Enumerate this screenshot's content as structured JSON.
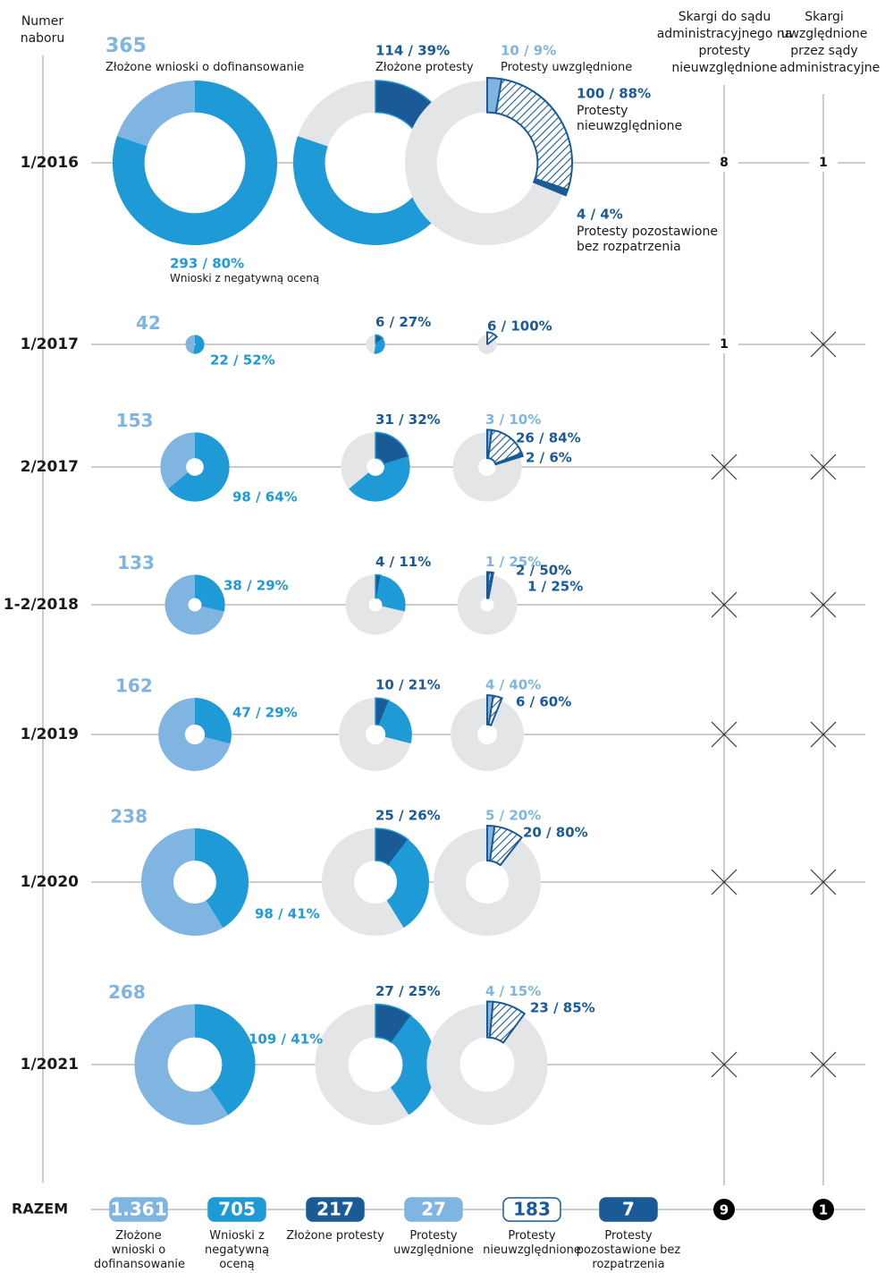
{
  "chart_data": {
    "type": "donut-timeline",
    "row_header": "Numer naboru",
    "column_headers": [
      "Skargi do sądu administracyjnego na protesty nieuwzględnione",
      "Skargi uwzględnione przez sądy administracyjne"
    ],
    "colors": {
      "light": "#7fb5e0",
      "mid": "#1e9ad6",
      "dark": "#1a5a96",
      "gray": "#e4e5e7"
    },
    "descriptions": {
      "applications": "Złożone wnioski o dofinansowanie",
      "negative": "Wnioski z negatywną oceną",
      "protests": "Złożone protesty",
      "accepted": "Protesty uwzględnione",
      "rejected": "Protesty nieuwzględnione",
      "left": "Protesty pozostawione bez rozpatrzenia"
    },
    "rows": [
      {
        "label": "1/2016",
        "applications": 365,
        "negative": {
          "count": 293,
          "pct": 80,
          "label": "293 / 80%"
        },
        "protests": {
          "count": 114,
          "pct": 39,
          "label": "114 / 39%"
        },
        "accepted": {
          "count": 10,
          "pct": 9,
          "label": "10 / 9%"
        },
        "rejected": {
          "count": 100,
          "pct": 88,
          "label": "100 / 88%"
        },
        "left": {
          "count": 4,
          "pct": 4,
          "label": "4 / 4%"
        },
        "complaints": 8,
        "upheld": 1
      },
      {
        "label": "1/2017",
        "applications": 42,
        "negative": {
          "count": 22,
          "pct": 52,
          "label": "22 / 52%"
        },
        "protests": {
          "count": 6,
          "pct": 27,
          "label": "6 / 27%"
        },
        "accepted": null,
        "rejected": {
          "count": 6,
          "pct": 100,
          "label": "6 / 100%"
        },
        "left": null,
        "complaints": 1,
        "upheld": null
      },
      {
        "label": "2/2017",
        "applications": 153,
        "negative": {
          "count": 98,
          "pct": 64,
          "label": "98 / 64%"
        },
        "protests": {
          "count": 31,
          "pct": 32,
          "label": "31 / 32%"
        },
        "accepted": {
          "count": 3,
          "pct": 10,
          "label": "3 / 10%"
        },
        "rejected": {
          "count": 26,
          "pct": 84,
          "label": "26 / 84%"
        },
        "left": {
          "count": 2,
          "pct": 6,
          "label": "2 / 6%"
        },
        "complaints": null,
        "upheld": null
      },
      {
        "label": "1-2/2018",
        "applications": 133,
        "negative": {
          "count": 38,
          "pct": 29,
          "label": "38 / 29%"
        },
        "protests": {
          "count": 4,
          "pct": 11,
          "label": "4 / 11%"
        },
        "accepted": {
          "count": 1,
          "pct": 25,
          "label": "1 / 25%"
        },
        "rejected": {
          "count": 2,
          "pct": 50,
          "label": "2 / 50%"
        },
        "left": {
          "count": 1,
          "pct": 25,
          "label": "1 / 25%"
        },
        "complaints": null,
        "upheld": null
      },
      {
        "label": "1/2019",
        "applications": 162,
        "negative": {
          "count": 47,
          "pct": 29,
          "label": "47 / 29%"
        },
        "protests": {
          "count": 10,
          "pct": 21,
          "label": "10 / 21%"
        },
        "accepted": {
          "count": 4,
          "pct": 40,
          "label": "4 / 40%"
        },
        "rejected": {
          "count": 6,
          "pct": 60,
          "label": "6 / 60%"
        },
        "left": null,
        "complaints": null,
        "upheld": null
      },
      {
        "label": "1/2020",
        "applications": 238,
        "negative": {
          "count": 98,
          "pct": 41,
          "label": "98 / 41%"
        },
        "protests": {
          "count": 25,
          "pct": 26,
          "label": "25 / 26%"
        },
        "accepted": {
          "count": 5,
          "pct": 20,
          "label": "5 / 20%"
        },
        "rejected": {
          "count": 20,
          "pct": 80,
          "label": "20 / 80%"
        },
        "left": null,
        "complaints": null,
        "upheld": null
      },
      {
        "label": "1/2021",
        "applications": 268,
        "negative": {
          "count": 109,
          "pct": 41,
          "label": "109 / 41%"
        },
        "protests": {
          "count": 27,
          "pct": 25,
          "label": "27 / 25%"
        },
        "accepted": {
          "count": 4,
          "pct": 15,
          "label": "4 / 15%"
        },
        "rejected": {
          "count": 23,
          "pct": 85,
          "label": "23 / 85%"
        },
        "left": null,
        "complaints": null,
        "upheld": null
      }
    ],
    "totals_label": "RAZEM",
    "totals": [
      {
        "value": 1361,
        "label": "1.361"
      },
      705,
      217,
      27,
      183,
      7,
      9,
      1
    ]
  }
}
